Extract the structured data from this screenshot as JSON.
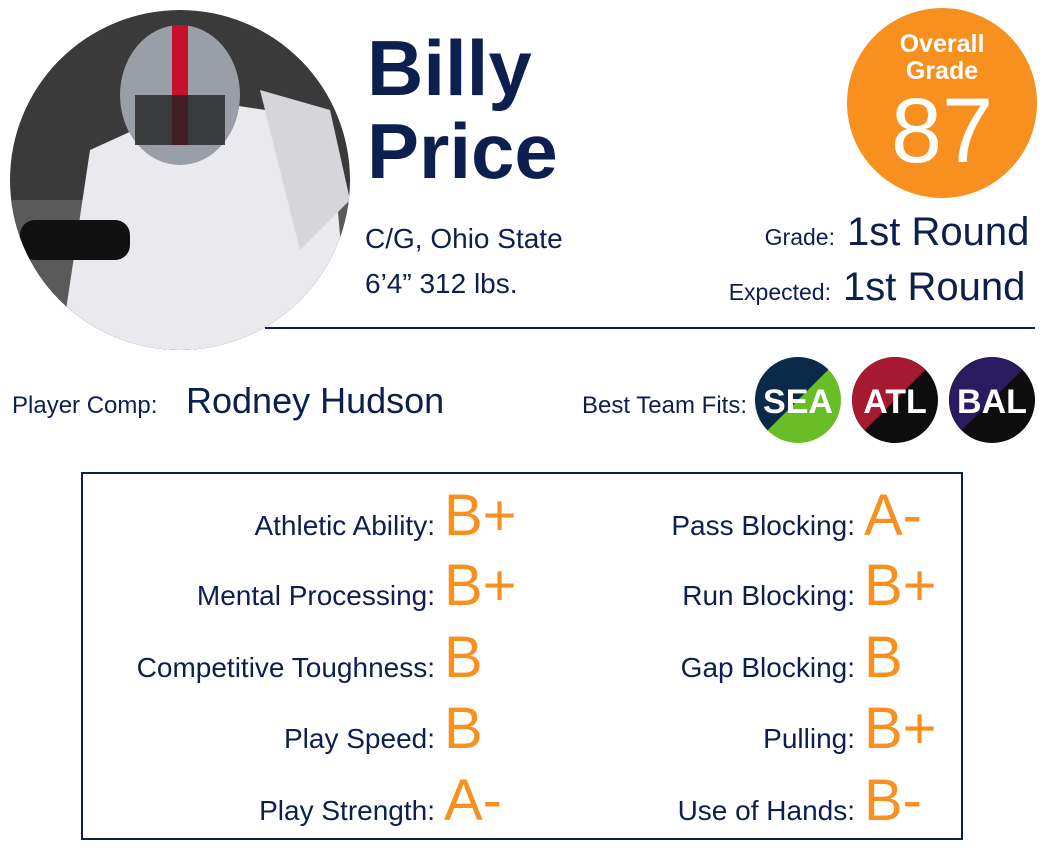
{
  "player": {
    "first_name": "Billy",
    "last_name": "Price",
    "position_school": "C/G, Ohio State",
    "measurements": "6’4” 312 lbs."
  },
  "overall": {
    "label_line1": "Overall",
    "label_line2": "Grade",
    "value": "87"
  },
  "grades": [
    {
      "label": "Grade:",
      "value": "1st Round"
    },
    {
      "label": "Expected:",
      "value": "1st Round"
    }
  ],
  "comp": {
    "label": "Player Comp:",
    "value": "Rodney Hudson"
  },
  "team_fits": {
    "label": "Best Team Fits:",
    "teams": [
      {
        "name": "SEA",
        "color1": "#0b2a4a",
        "color2": "#69be28"
      },
      {
        "name": "ATL",
        "color1": "#a71930",
        "color2": "#0d0d0d"
      },
      {
        "name": "BAL",
        "color1": "#2a1a5e",
        "color2": "#0d0d0d"
      }
    ]
  },
  "traits": {
    "left": [
      {
        "label": "Athletic Ability:",
        "grade": "B+"
      },
      {
        "label": "Mental Processing:",
        "grade": "B+"
      },
      {
        "label": "Competitive Toughness:",
        "grade": "B"
      },
      {
        "label": "Play Speed:",
        "grade": "B"
      },
      {
        "label": "Play Strength:",
        "grade": "A-"
      }
    ],
    "right": [
      {
        "label": "Pass Blocking:",
        "grade": "A-"
      },
      {
        "label": "Run Blocking:",
        "grade": "B+"
      },
      {
        "label": "Gap Blocking:",
        "grade": "B"
      },
      {
        "label": "Pulling:",
        "grade": "B+"
      },
      {
        "label": "Use of Hands:",
        "grade": "B-"
      }
    ]
  }
}
